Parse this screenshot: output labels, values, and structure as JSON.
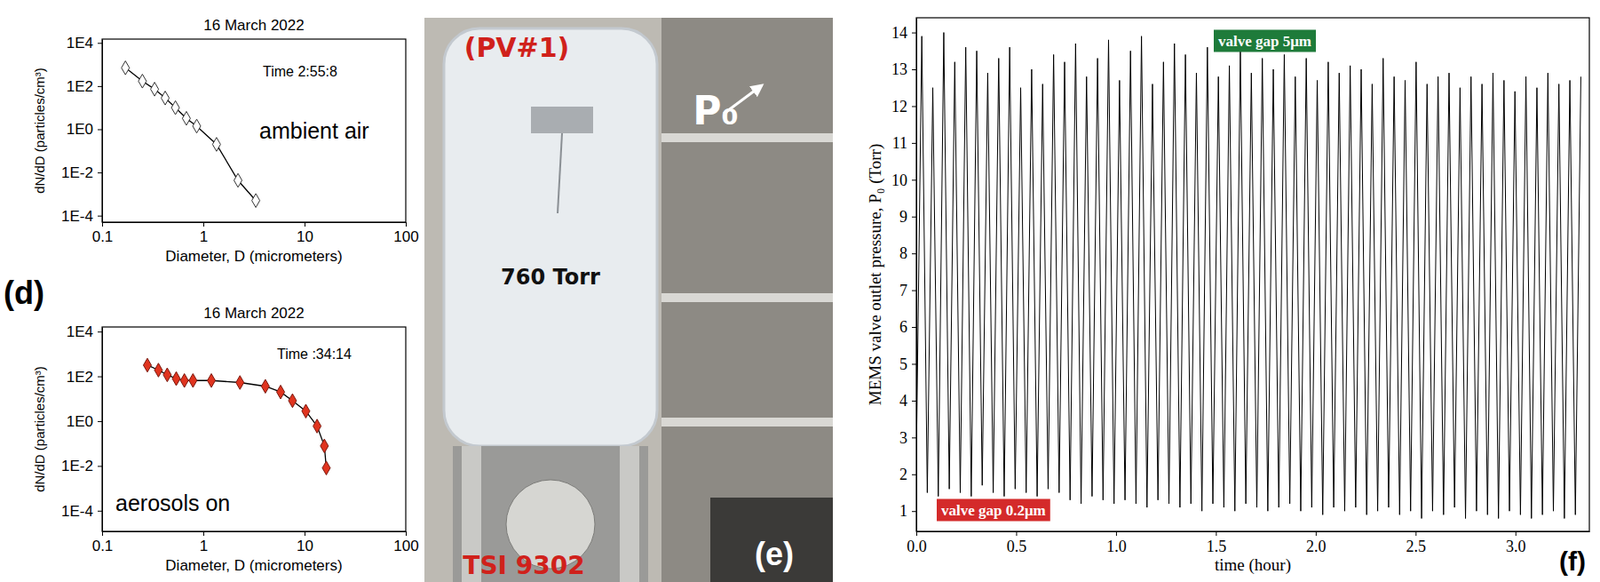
{
  "chart_data": [
    {
      "type": "line",
      "title": "16 March 2022",
      "x_label": "Diameter, D (micrometers)",
      "y_label": "dN/dD (particles/cm³)",
      "log": true,
      "grid": false,
      "xlim": [
        0.1,
        100
      ],
      "xticks": [
        0.1,
        1,
        10,
        100
      ],
      "ylim": [
        5e-05,
        15000
      ],
      "yticks": [
        {
          "value": 10000,
          "label": "1E4"
        },
        {
          "value": 100,
          "label": "1E2"
        },
        {
          "value": 1,
          "label": "1E0"
        },
        {
          "value": 0.01,
          "label": "1E-2"
        },
        {
          "value": 0.0001,
          "label": "1E-4"
        }
      ],
      "x": [
        0.17,
        0.25,
        0.33,
        0.42,
        0.53,
        0.68,
        0.86,
        1.35,
        2.2,
        3.3
      ],
      "series": [
        {
          "values": [
            700,
            170,
            72,
            28,
            10,
            3.2,
            1.4,
            0.2,
            0.0043,
            0.0005
          ],
          "color": "#333333",
          "marker": "open-diamond"
        }
      ],
      "annotations": [
        "Time 2:55:8",
        "ambient air"
      ]
    },
    {
      "type": "line",
      "title": "16 March 2022",
      "x_label": "Diameter, D (micrometers)",
      "y_label": "dN/dD (particles/cm³)",
      "log": true,
      "grid": false,
      "xlim": [
        0.1,
        100
      ],
      "xticks": [
        0.1,
        1,
        10,
        100
      ],
      "ylim": [
        1.2e-05,
        16000
      ],
      "yticks": [
        {
          "value": 10000,
          "label": "1E4"
        },
        {
          "value": 100,
          "label": "1E2"
        },
        {
          "value": 1,
          "label": "1E0"
        },
        {
          "value": 0.01,
          "label": "1E-2"
        },
        {
          "value": 0.0001,
          "label": "1E-4"
        }
      ],
      "x": [
        0.28,
        0.36,
        0.44,
        0.54,
        0.65,
        0.79,
        1.2,
        2.3,
        4.1,
        5.8,
        7.6,
        10.3,
        13.3,
        15.7,
        16.4
      ],
      "series": [
        {
          "values": [
            316,
            190,
            117,
            79,
            65,
            65,
            65,
            53,
            36,
            20,
            8.2,
            2.8,
            0.6,
            0.078,
            0.0081
          ],
          "color": "#e0341f",
          "marker": "diamond"
        }
      ],
      "annotations": [
        "Time :34:14",
        "aerosols on"
      ]
    },
    {
      "type": "line",
      "x_label": "time (hour)",
      "y_label": "MEMS valve outlet pressure, P₀ (Torr)",
      "grid": false,
      "xlim": [
        0,
        3.37
      ],
      "xticks": [
        {
          "value": 0,
          "label": "0.0"
        },
        {
          "value": 0.5,
          "label": "0.5"
        },
        {
          "value": 1,
          "label": "1.0"
        },
        {
          "value": 1.5,
          "label": "1.5"
        },
        {
          "value": 2,
          "label": "2.0"
        },
        {
          "value": 2.5,
          "label": "2.5"
        },
        {
          "value": 3,
          "label": "3.0"
        }
      ],
      "ylim": [
        0.45,
        14.4
      ],
      "yticks": [
        1,
        2,
        3,
        4,
        5,
        6,
        7,
        8,
        9,
        10,
        11,
        12,
        13,
        14
      ],
      "x": [
        0,
        0.0275,
        0.055,
        0.0825,
        0.11,
        0.1375,
        0.165,
        0.1925,
        0.22,
        0.2475,
        0.275,
        0.3025,
        0.33,
        0.3575,
        0.385,
        0.4125,
        0.44,
        0.4675,
        0.495,
        0.5225,
        0.55,
        0.5775,
        0.605,
        0.6325,
        0.66,
        0.6875,
        0.715,
        0.7425,
        0.77,
        0.7975,
        0.825,
        0.8525,
        0.88,
        0.9075,
        0.935,
        0.9625,
        0.99,
        1.0175,
        1.045,
        1.0725,
        1.1,
        1.1275,
        1.155,
        1.1825,
        1.21,
        1.2375,
        1.265,
        1.2925,
        1.32,
        1.3475,
        1.375,
        1.4025,
        1.43,
        1.4575,
        1.485,
        1.5125,
        1.54,
        1.5675,
        1.595,
        1.6225,
        1.65,
        1.6775,
        1.705,
        1.7325,
        1.76,
        1.7875,
        1.815,
        1.8425,
        1.87,
        1.8975,
        1.925,
        1.9525,
        1.98,
        2.0075,
        2.035,
        2.0625,
        2.09,
        2.1175,
        2.145,
        2.1725,
        2.2,
        2.2275,
        2.255,
        2.2825,
        2.31,
        2.3375,
        2.365,
        2.3925,
        2.42,
        2.4475,
        2.475,
        2.5025,
        2.53,
        2.5575,
        2.585,
        2.6125,
        2.64,
        2.6675,
        2.695,
        2.7225,
        2.75,
        2.7775,
        2.805,
        2.8325,
        2.86,
        2.8875,
        2.915,
        2.9425,
        2.97,
        2.9975,
        3.025,
        3.0525,
        3.08,
        3.1075,
        3.135,
        3.1625,
        3.19,
        3.2175,
        3.245,
        3.2725,
        3.3,
        3.3275
      ],
      "series": [
        {
          "color": "#000000",
          "values": [
            2.4,
            13.9,
            1.5,
            12.5,
            1.4,
            14.0,
            1.6,
            13.2,
            1.5,
            13.6,
            1.4,
            13.5,
            1.7,
            12.9,
            1.5,
            13.3,
            1.4,
            13.6,
            1.6,
            12.5,
            1.5,
            13.0,
            1.4,
            12.6,
            1.6,
            13.4,
            1.5,
            13.2,
            1.3,
            13.7,
            1.2,
            12.8,
            1.4,
            13.3,
            1.3,
            13.8,
            1.2,
            12.7,
            1.3,
            13.5,
            1.2,
            13.9,
            1.1,
            12.6,
            1.3,
            13.2,
            1.2,
            13.7,
            1.1,
            13.4,
            1.2,
            12.9,
            1.0,
            13.6,
            1.2,
            12.8,
            1.1,
            13.1,
            1.0,
            13.5,
            1.2,
            12.9,
            1.1,
            13.3,
            1.0,
            13.0,
            1.1,
            13.4,
            1.2,
            12.8,
            1.0,
            13.3,
            1.1,
            12.7,
            0.9,
            13.2,
            1.1,
            12.9,
            1.0,
            13.1,
            1.1,
            13.0,
            0.9,
            12.6,
            1.0,
            13.3,
            1.1,
            12.8,
            0.9,
            12.7,
            1.0,
            13.2,
            0.8,
            12.6,
            1.0,
            12.8,
            0.9,
            12.9,
            1.1,
            12.5,
            0.8,
            12.8,
            1.0,
            12.6,
            0.9,
            12.9,
            0.8,
            12.7,
            1.0,
            12.4,
            0.9,
            12.8,
            0.8,
            12.5,
            0.9,
            12.9,
            1.0,
            12.6,
            0.8,
            12.7,
            0.9,
            12.8
          ]
        }
      ],
      "annotations": [
        {
          "text": "valve gap 5μm",
          "color": "#1e7b3a"
        },
        {
          "text": "valve gap 0.2μm",
          "color": "#d42a2a"
        }
      ]
    }
  ],
  "photo": {
    "labels": [
      "(PV#1)",
      "760 Torr",
      "P₀",
      "TSI 9302"
    ]
  },
  "panel_labels": [
    "(d)",
    "(e)",
    "(f)"
  ]
}
